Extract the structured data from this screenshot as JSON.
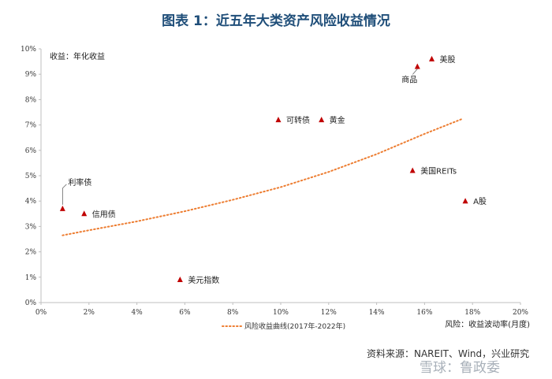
{
  "figure": {
    "title": "图表 1：近五年大类资产风险收益情况",
    "source": "资料来源：NAREIT、Wind，兴业研究",
    "watermark": "雪球：鲁政委"
  },
  "chart_data": {
    "type": "scatter",
    "title": "图表 1：近五年大类资产风险收益情况",
    "xlabel": "风险：收益波动率(月度)",
    "ylabel": "收益：年化收益",
    "xlim": [
      0,
      20
    ],
    "ylim": [
      0,
      10
    ],
    "x_ticks": [
      "0%",
      "2%",
      "4%",
      "6%",
      "8%",
      "10%",
      "12%",
      "14%",
      "16%",
      "18%",
      "20%"
    ],
    "y_ticks": [
      "0%",
      "1%",
      "2%",
      "3%",
      "4%",
      "5%",
      "6%",
      "7%",
      "8%",
      "9%",
      "10%"
    ],
    "legend_label": "风险收益曲线(2017年-2022年)",
    "grid": false,
    "points": [
      {
        "label": "利率债",
        "x": 0.9,
        "y": 3.7
      },
      {
        "label": "信用债",
        "x": 1.8,
        "y": 3.5
      },
      {
        "label": "美元指数",
        "x": 5.8,
        "y": 0.9
      },
      {
        "label": "可转债",
        "x": 9.9,
        "y": 7.2
      },
      {
        "label": "黄金",
        "x": 11.7,
        "y": 7.2
      },
      {
        "label": "商品",
        "x": 15.7,
        "y": 9.3
      },
      {
        "label": "美股",
        "x": 16.3,
        "y": 9.6
      },
      {
        "label": "美国REITs",
        "x": 15.5,
        "y": 5.2
      },
      {
        "label": "A股",
        "x": 17.7,
        "y": 4.0
      }
    ],
    "curve": {
      "name": "风险收益曲线(2017年-2022年)",
      "x": [
        0.9,
        2,
        4,
        6,
        8,
        10,
        12,
        14,
        16,
        17.6
      ],
      "y": [
        2.65,
        2.85,
        3.2,
        3.6,
        4.05,
        4.55,
        5.15,
        5.85,
        6.65,
        7.25
      ]
    },
    "colors": {
      "marker": "#c00000",
      "curve": "#ed7d31",
      "axis": "#bfbfbf",
      "text": "#333333"
    }
  }
}
